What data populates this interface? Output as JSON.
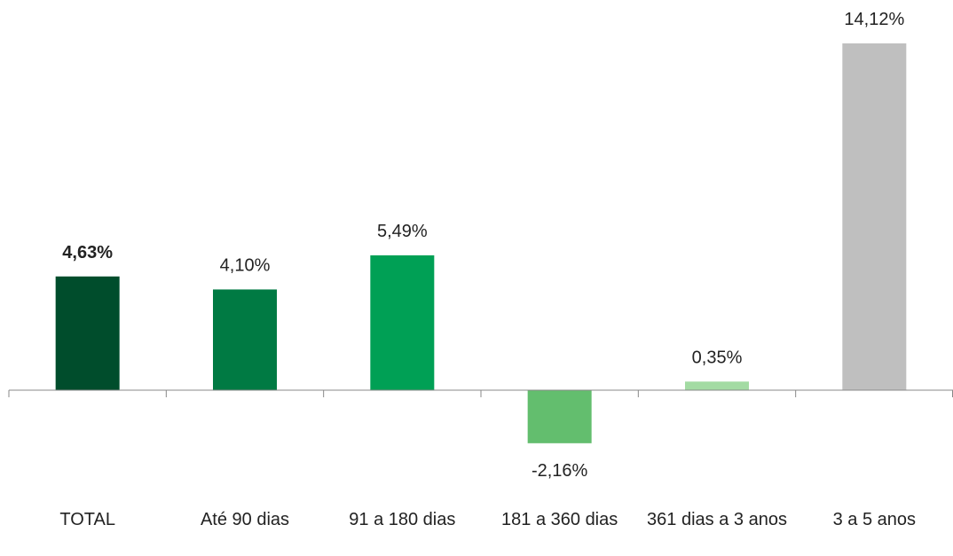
{
  "chart_data": {
    "type": "bar",
    "categories": [
      "TOTAL",
      "Até 90 dias",
      "91 a 180 dias",
      "181 a 360 dias",
      "361 dias a 3 anos",
      "3 a 5 anos"
    ],
    "values": [
      4.63,
      4.1,
      5.49,
      -2.16,
      0.35,
      14.12
    ],
    "value_labels": [
      "4,63%",
      "4,10%",
      "5,49%",
      "-2,16%",
      "0,35%",
      "14,12%"
    ],
    "colors": [
      "#004d2c",
      "#007a43",
      "#00a055",
      "#63be6e",
      "#a3dba3",
      "#bfbfbf"
    ],
    "ylim": [
      -4,
      16
    ]
  }
}
